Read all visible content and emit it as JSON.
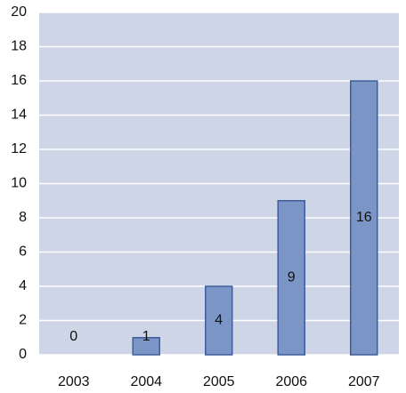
{
  "chart_data": {
    "type": "bar",
    "categories": [
      "2003",
      "2004",
      "2005",
      "2006",
      "2007"
    ],
    "values": [
      0,
      1,
      4,
      9,
      16
    ],
    "color": "#7b96c6",
    "ylim": [
      0,
      20
    ],
    "yticks": [
      0,
      2,
      4,
      6,
      8,
      10,
      12,
      14,
      16,
      18,
      20
    ],
    "grid": true
  }
}
